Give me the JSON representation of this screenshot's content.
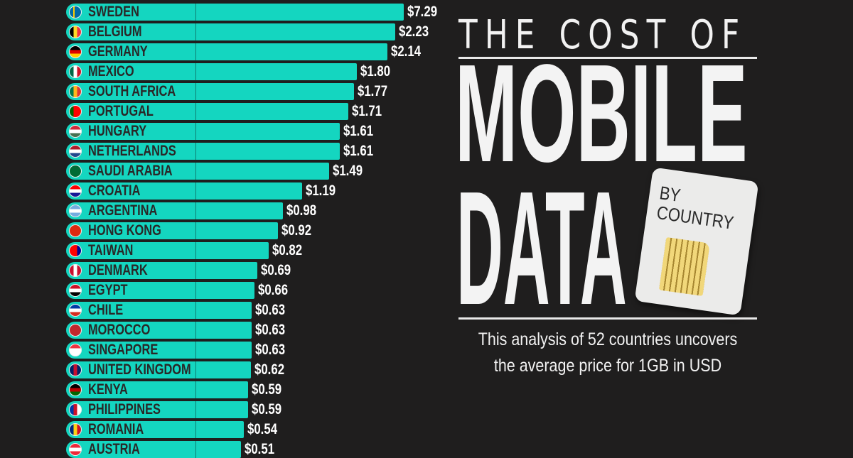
{
  "header": {
    "title_line1": "THE COST OF",
    "title_line2": "MOBILE",
    "title_line3": "DATA",
    "sim_label_1": "BY",
    "sim_label_2": "COUNTRY",
    "subtitle_line1": "This analysis of 52 countries uncovers",
    "subtitle_line2": "the average price for 1GB in USD"
  },
  "colors": {
    "bar": "#14d6c0",
    "background": "#1f1e1e",
    "text": "#f2f2f2"
  },
  "chart_data": {
    "type": "bar",
    "orientation": "horizontal",
    "title": "The Cost of Mobile Data by Country",
    "xlabel": "Average price for 1GB (USD)",
    "categories": [
      "SWEDEN",
      "BELGIUM",
      "GERMANY",
      "MEXICO",
      "SOUTH AFRICA",
      "PORTUGAL",
      "HUNGARY",
      "NETHERLANDS",
      "SAUDI ARABIA",
      "CROATIA",
      "ARGENTINA",
      "HONG KONG",
      "TAIWAN",
      "DENMARK",
      "EGYPT",
      "CHILE",
      "MOROCCO",
      "SINGAPORE",
      "UNITED KINGDOM",
      "KENYA",
      "PHILIPPINES",
      "ROMANIA",
      "AUSTRIA"
    ],
    "values": [
      7.29,
      2.23,
      2.14,
      1.8,
      1.77,
      1.71,
      1.61,
      1.61,
      1.49,
      1.19,
      0.98,
      0.92,
      0.82,
      0.69,
      0.66,
      0.63,
      0.63,
      0.63,
      0.62,
      0.59,
      0.59,
      0.54,
      0.51
    ],
    "labels": [
      "$7.29",
      "$2.23",
      "$2.14",
      "$1.80",
      "$1.77",
      "$1.71",
      "$1.61",
      "$1.61",
      "$1.49",
      "$1.19",
      "$0.98",
      "$0.92",
      "$0.82",
      "$0.69",
      "$0.66",
      "$0.63",
      "$0.63",
      "$0.63",
      "$0.62",
      "$0.59",
      "$0.59",
      "$0.54",
      "$0.51"
    ],
    "flags": [
      [
        "#006aa7",
        "#fecc00",
        "v"
      ],
      [
        "#000000",
        "#fdda24",
        "#ef3340"
      ],
      [
        "#000000",
        "#dd0000",
        "#ffce00",
        "h"
      ],
      [
        "#006847",
        "#ffffff",
        "#ce1126"
      ],
      [
        "#007749",
        "#ffb81c",
        "#de3831"
      ],
      [
        "#006600",
        "#ff0000",
        "#ff0000"
      ],
      [
        "#ce2939",
        "#ffffff",
        "#477050",
        "h"
      ],
      [
        "#ae1c28",
        "#ffffff",
        "#21468b",
        "h"
      ],
      [
        "#006c35",
        "#006c35",
        "#006c35"
      ],
      [
        "#ff0000",
        "#ffffff",
        "#171796",
        "h"
      ],
      [
        "#74acdf",
        "#ffffff",
        "#74acdf",
        "h"
      ],
      [
        "#de2910",
        "#de2910",
        "#de2910"
      ],
      [
        "#fe0000",
        "#fe0000",
        "#000095"
      ],
      [
        "#c8102e",
        "#ffffff",
        "#c8102e"
      ],
      [
        "#ce1126",
        "#ffffff",
        "#000000",
        "h"
      ],
      [
        "#0039a6",
        "#ffffff",
        "#d52b1e",
        "h"
      ],
      [
        "#c1272d",
        "#c1272d",
        "#c1272d"
      ],
      [
        "#ef3340",
        "#ffffff",
        "#ffffff",
        "h"
      ],
      [
        "#012169",
        "#c8102e",
        "#012169"
      ],
      [
        "#000000",
        "#bb0000",
        "#006600",
        "h"
      ],
      [
        "#0038a8",
        "#ce1126",
        "#ffffff"
      ],
      [
        "#002b7f",
        "#fcd116",
        "#ce1126"
      ],
      [
        "#ed2939",
        "#ffffff",
        "#ed2939",
        "h"
      ]
    ],
    "axis_break": "Sweden bar truncated (not to scale)"
  }
}
